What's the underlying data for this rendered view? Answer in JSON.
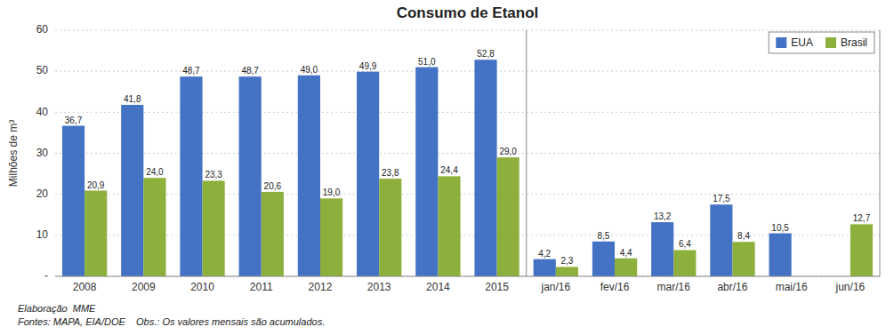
{
  "chart_data": {
    "type": "bar",
    "title": "Consumo de Etanol",
    "ylabel": "Milhões de m³",
    "categories": [
      "2008",
      "2009",
      "2010",
      "2011",
      "2012",
      "2013",
      "2014",
      "2015",
      "jan/16",
      "fev/16",
      "mar/16",
      "abr/16",
      "mai/16",
      "jun/16"
    ],
    "series": [
      {
        "name": "EUA",
        "color": "#4472C4",
        "values": [
          36.7,
          41.8,
          48.7,
          48.7,
          49.0,
          49.9,
          51.0,
          52.8,
          4.2,
          8.5,
          13.2,
          17.5,
          10.5,
          null
        ],
        "value_labels": [
          "36,7",
          "41,8",
          "48,7",
          "48,7",
          "49,0",
          "49,9",
          "51,0",
          "52,8",
          "4,2",
          "8,5",
          "13,2",
          "17,5",
          "10,5",
          null
        ]
      },
      {
        "name": "Brasil",
        "color": "#8DAF3B",
        "values": [
          20.9,
          24.0,
          23.3,
          20.6,
          19.0,
          23.8,
          24.4,
          29.0,
          2.3,
          4.4,
          6.4,
          8.4,
          null,
          12.7
        ],
        "value_labels": [
          "20,9",
          "24,0",
          "23,3",
          "20,6",
          "19,0",
          "23,8",
          "24,4",
          "29,0",
          "2,3",
          "4,4",
          "6,4",
          "8,4",
          null,
          "12,7"
        ]
      }
    ],
    "ylim": [
      0,
      60
    ],
    "yticks": [
      {
        "value": 0,
        "label": "-"
      },
      10,
      20,
      30,
      40,
      50,
      60
    ],
    "grid": true,
    "legend": "upper right",
    "data_labels": true,
    "annotations": [
      "Elaboração  MME",
      "Fontes: MAPA, EIA/DOE    Obs.: Os valores mensais são acumulados."
    ]
  }
}
